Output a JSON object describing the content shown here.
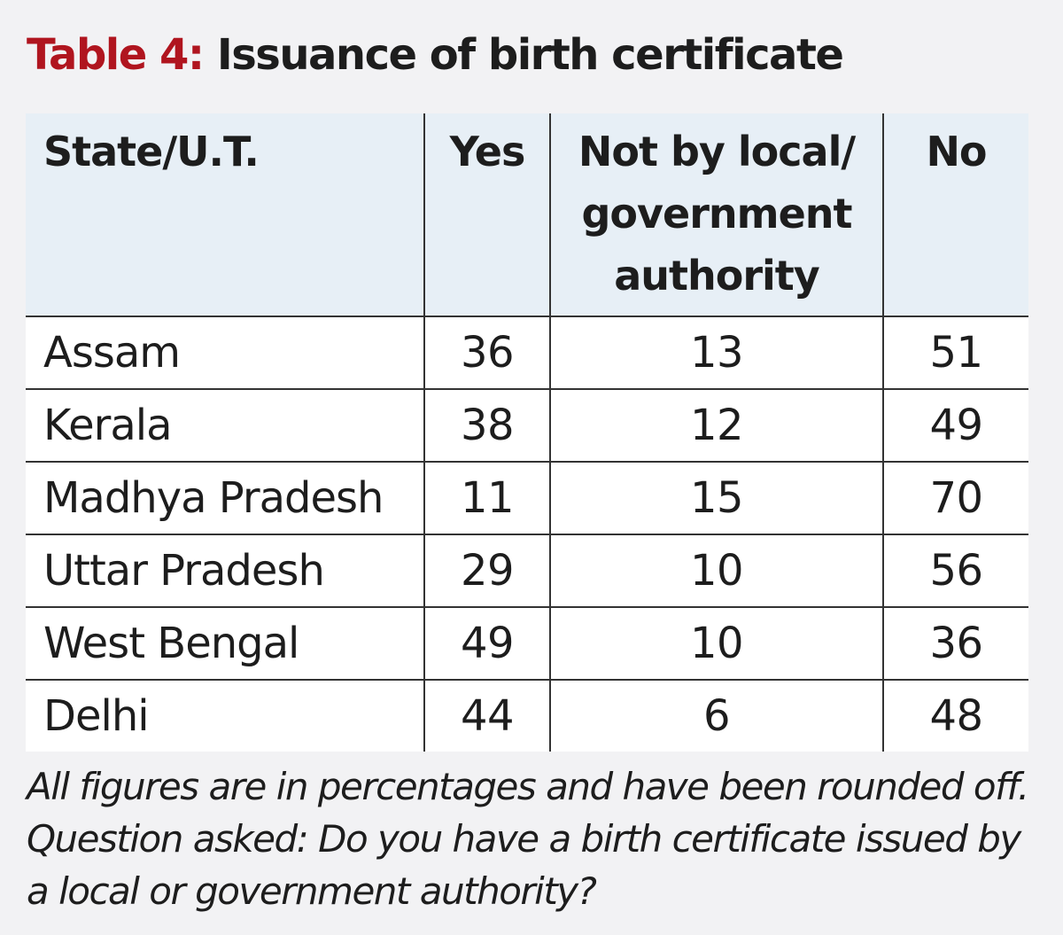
{
  "title": {
    "label": "Table 4:",
    "text": "Issuance of birth certificate"
  },
  "chart_data": {
    "type": "table",
    "title": "Table 4: Issuance of birth certificate",
    "columns": [
      "State/U.T.",
      "Yes",
      "Not by local/ government authority",
      "No"
    ],
    "rows": [
      {
        "state": "Assam",
        "yes": "36",
        "not_by_authority": "13",
        "no": "51"
      },
      {
        "state": "Kerala",
        "yes": "38",
        "not_by_authority": "12",
        "no": "49"
      },
      {
        "state": "Madhya Pradesh",
        "yes": "11",
        "not_by_authority": "15",
        "no": "70"
      },
      {
        "state": "Uttar Pradesh",
        "yes": "29",
        "not_by_authority": "10",
        "no": "56"
      },
      {
        "state": "West Bengal",
        "yes": "49",
        "not_by_authority": "10",
        "no": "36"
      },
      {
        "state": "Delhi",
        "yes": "44",
        "not_by_authority": "6",
        "no": "48"
      }
    ],
    "note": "All figures are in percentages and have been rounded off. Question asked: Do you have a birth certificate issued by a local or government authority?"
  },
  "colors": {
    "title_label": "#b0151f",
    "header_bg": "#e7eff6",
    "page_bg": "#f2f2f4",
    "rule": "#333333"
  }
}
